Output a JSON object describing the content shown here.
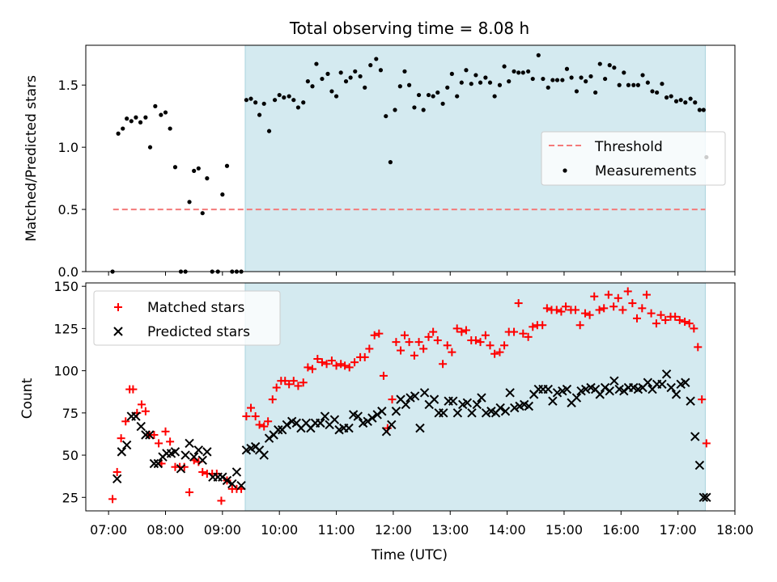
{
  "chart_data": [
    {
      "type": "scatter",
      "title": "Total observing time = 8.08 h",
      "ylabel": "Matched/Predicted stars",
      "xlabel": "",
      "xlim": [
        6.6,
        18.0
      ],
      "ylim": [
        0,
        1.82
      ],
      "yticks": [
        0.0,
        0.5,
        1.0,
        1.5
      ],
      "ytick_labels": [
        "0.0",
        "0.5",
        "1.0",
        "1.5"
      ],
      "xticks": [
        7,
        8,
        9,
        10,
        11,
        12,
        13,
        14,
        15,
        16,
        17,
        18
      ],
      "shaded_region": [
        9.4,
        17.48
      ],
      "shade_color": "#d4eaf0",
      "grid": false,
      "legend": {
        "position": "center-right",
        "entries": [
          "Threshold",
          "Measurements"
        ]
      },
      "threshold": {
        "name": "Threshold",
        "value": 0.5,
        "x_range": [
          7.08,
          17.48
        ],
        "color": "#f47a7a",
        "style": "dashed"
      },
      "series": [
        {
          "name": "Measurements",
          "marker": "dot",
          "color": "#000000",
          "x": [
            7.07,
            7.17,
            7.25,
            7.32,
            7.4,
            7.48,
            7.56,
            7.65,
            7.73,
            7.82,
            7.92,
            8.0,
            8.08,
            8.17,
            8.27,
            8.35,
            8.42,
            8.5,
            8.58,
            8.65,
            8.73,
            8.82,
            8.92,
            9.0,
            9.08,
            9.17,
            9.25,
            9.33,
            9.42,
            9.5,
            9.58,
            9.65,
            9.73,
            9.82,
            9.92,
            10.0,
            10.08,
            10.17,
            10.25,
            10.33,
            10.42,
            10.5,
            10.58,
            10.65,
            10.75,
            10.85,
            10.92,
            11.0,
            11.08,
            11.17,
            11.25,
            11.33,
            11.42,
            11.5,
            11.6,
            11.7,
            11.78,
            11.87,
            11.95,
            12.03,
            12.12,
            12.2,
            12.28,
            12.37,
            12.45,
            12.53,
            12.62,
            12.7,
            12.78,
            12.87,
            12.95,
            13.03,
            13.12,
            13.2,
            13.28,
            13.37,
            13.45,
            13.53,
            13.62,
            13.7,
            13.78,
            13.87,
            13.95,
            14.03,
            14.12,
            14.2,
            14.28,
            14.37,
            14.45,
            14.55,
            14.63,
            14.72,
            14.8,
            14.88,
            14.97,
            15.05,
            15.13,
            15.22,
            15.3,
            15.38,
            15.47,
            15.55,
            15.63,
            15.72,
            15.8,
            15.88,
            15.97,
            16.05,
            16.13,
            16.22,
            16.3,
            16.38,
            16.47,
            16.55,
            16.63,
            16.72,
            16.8,
            16.88,
            16.97,
            17.05,
            17.13,
            17.22,
            17.3,
            17.38,
            17.45,
            17.5
          ],
          "y": [
            0.0,
            1.11,
            1.15,
            1.23,
            1.21,
            1.24,
            1.2,
            1.24,
            1.0,
            1.33,
            1.26,
            1.28,
            1.15,
            0.84,
            0.0,
            0.0,
            0.56,
            0.81,
            0.83,
            0.47,
            0.75,
            0.0,
            0.0,
            0.62,
            0.85,
            0.0,
            0.0,
            0.0,
            1.38,
            1.39,
            1.36,
            1.26,
            1.35,
            1.13,
            1.38,
            1.42,
            1.4,
            1.41,
            1.38,
            1.32,
            1.36,
            1.53,
            1.49,
            1.67,
            1.55,
            1.59,
            1.45,
            1.41,
            1.6,
            1.53,
            1.56,
            1.61,
            1.57,
            1.48,
            1.66,
            1.71,
            1.62,
            1.25,
            0.88,
            1.3,
            1.49,
            1.61,
            1.5,
            1.32,
            1.42,
            1.3,
            1.42,
            1.41,
            1.44,
            1.35,
            1.48,
            1.59,
            1.41,
            1.52,
            1.62,
            1.51,
            1.58,
            1.52,
            1.56,
            1.52,
            1.41,
            1.5,
            1.65,
            1.53,
            1.61,
            1.6,
            1.6,
            1.61,
            1.55,
            1.74,
            1.55,
            1.48,
            1.54,
            1.54,
            1.54,
            1.63,
            1.56,
            1.45,
            1.56,
            1.53,
            1.57,
            1.44,
            1.67,
            1.55,
            1.66,
            1.64,
            1.5,
            1.6,
            1.5,
            1.5,
            1.5,
            1.58,
            1.52,
            1.45,
            1.44,
            1.51,
            1.4,
            1.41,
            1.37,
            1.38,
            1.36,
            1.39,
            1.36,
            1.3,
            1.3,
            0.92
          ]
        }
      ]
    },
    {
      "type": "scatter",
      "title": "",
      "xlabel": "Time (UTC)",
      "ylabel": "Count",
      "xlim": [
        6.6,
        18.0
      ],
      "ylim": [
        17,
        152
      ],
      "yticks": [
        25,
        50,
        75,
        100,
        125,
        150
      ],
      "xticks": [
        7,
        8,
        9,
        10,
        11,
        12,
        13,
        14,
        15,
        16,
        17,
        18
      ],
      "xtick_labels": [
        "07:00",
        "08:00",
        "09:00",
        "10:00",
        "11:00",
        "12:00",
        "13:00",
        "14:00",
        "15:00",
        "16:00",
        "17:00",
        "18:00"
      ],
      "shaded_region": [
        9.4,
        17.48
      ],
      "shade_color": "#d4eaf0",
      "grid": false,
      "legend": {
        "position": "top-left",
        "entries": [
          "Matched stars",
          "Predicted stars"
        ]
      },
      "series": [
        {
          "name": "Matched stars",
          "marker": "plus",
          "color": "#ff0000",
          "x": [
            7.07,
            7.15,
            7.22,
            7.3,
            7.37,
            7.43,
            7.5,
            7.58,
            7.65,
            7.72,
            7.8,
            7.88,
            7.93,
            8.0,
            8.08,
            8.17,
            8.25,
            8.33,
            8.42,
            8.5,
            8.58,
            8.65,
            8.73,
            8.82,
            8.9,
            8.98,
            9.08,
            9.17,
            9.25,
            9.33,
            9.42,
            9.5,
            9.58,
            9.65,
            9.73,
            9.8,
            9.88,
            9.95,
            10.03,
            10.1,
            10.17,
            10.25,
            10.33,
            10.42,
            10.5,
            10.58,
            10.67,
            10.75,
            10.83,
            10.92,
            11.0,
            11.08,
            11.15,
            11.23,
            11.32,
            11.42,
            11.5,
            11.58,
            11.67,
            11.75,
            11.83,
            11.9,
            11.98,
            12.05,
            12.13,
            12.2,
            12.28,
            12.37,
            12.45,
            12.53,
            12.62,
            12.7,
            12.78,
            12.87,
            12.95,
            13.03,
            13.12,
            13.2,
            13.28,
            13.37,
            13.45,
            13.53,
            13.62,
            13.7,
            13.78,
            13.87,
            13.95,
            14.03,
            14.12,
            14.2,
            14.28,
            14.37,
            14.45,
            14.53,
            14.62,
            14.7,
            14.78,
            14.87,
            14.95,
            15.03,
            15.12,
            15.2,
            15.28,
            15.37,
            15.45,
            15.53,
            15.62,
            15.7,
            15.78,
            15.87,
            15.95,
            16.03,
            16.12,
            16.2,
            16.28,
            16.37,
            16.45,
            16.53,
            16.62,
            16.7,
            16.78,
            16.87,
            16.95,
            17.03,
            17.12,
            17.2,
            17.28,
            17.35,
            17.42,
            17.5
          ],
          "y": [
            24,
            40,
            60,
            70,
            89,
            89,
            75,
            80,
            76,
            62,
            62,
            57,
            45,
            64,
            58,
            43,
            43,
            43,
            28,
            47,
            46,
            40,
            39,
            39,
            39,
            23,
            35,
            30,
            30,
            30,
            73,
            78,
            73,
            68,
            67,
            70,
            83,
            90,
            94,
            94,
            92,
            94,
            91,
            93,
            102,
            101,
            107,
            105,
            104,
            106,
            103,
            104,
            103,
            102,
            105,
            108,
            108,
            113,
            121,
            122,
            97,
            66,
            83,
            117,
            112,
            121,
            117,
            109,
            117,
            113,
            120,
            123,
            118,
            104,
            115,
            111,
            125,
            123,
            124,
            118,
            118,
            117,
            121,
            115,
            110,
            111,
            115,
            123,
            123,
            140,
            122,
            120,
            126,
            127,
            127,
            137,
            136,
            136,
            135,
            138,
            136,
            136,
            127,
            134,
            133,
            144,
            136,
            137,
            145,
            138,
            143,
            136,
            147,
            140,
            131,
            137,
            145,
            134,
            128,
            133,
            130,
            132,
            132,
            130,
            129,
            128,
            125,
            114,
            83,
            57
          ]
        },
        {
          "name": "Predicted stars",
          "marker": "x",
          "color": "#000000",
          "x": [
            7.15,
            7.23,
            7.32,
            7.4,
            7.48,
            7.57,
            7.65,
            7.72,
            7.8,
            7.87,
            7.95,
            8.02,
            8.1,
            8.17,
            8.27,
            8.35,
            8.42,
            8.5,
            8.58,
            8.65,
            8.73,
            8.83,
            8.92,
            9.0,
            9.08,
            9.17,
            9.25,
            9.33,
            9.42,
            9.5,
            9.58,
            9.65,
            9.73,
            9.82,
            9.9,
            9.98,
            10.05,
            10.13,
            10.22,
            10.3,
            10.38,
            10.47,
            10.55,
            10.63,
            10.72,
            10.8,
            10.88,
            10.97,
            11.05,
            11.13,
            11.22,
            11.3,
            11.38,
            11.47,
            11.55,
            11.63,
            11.72,
            11.8,
            11.88,
            11.97,
            12.05,
            12.13,
            12.22,
            12.3,
            12.38,
            12.47,
            12.55,
            12.63,
            12.72,
            12.8,
            12.88,
            12.97,
            13.05,
            13.13,
            13.22,
            13.3,
            13.38,
            13.47,
            13.55,
            13.63,
            13.72,
            13.8,
            13.88,
            13.97,
            14.05,
            14.13,
            14.22,
            14.3,
            14.38,
            14.47,
            14.55,
            14.63,
            14.72,
            14.8,
            14.88,
            14.97,
            15.05,
            15.13,
            15.22,
            15.3,
            15.38,
            15.47,
            15.55,
            15.63,
            15.72,
            15.8,
            15.88,
            15.97,
            16.05,
            16.13,
            16.22,
            16.3,
            16.38,
            16.47,
            16.55,
            16.63,
            16.72,
            16.8,
            16.88,
            16.97,
            17.05,
            17.13,
            17.22,
            17.3,
            17.38,
            17.45,
            17.5
          ],
          "y": [
            36,
            52,
            56,
            73,
            73,
            67,
            62,
            62,
            45,
            45,
            49,
            51,
            51,
            52,
            42,
            50,
            57,
            49,
            53,
            47,
            52,
            37,
            37,
            37,
            35,
            33,
            40,
            32,
            53,
            54,
            55,
            53,
            50,
            60,
            62,
            65,
            65,
            68,
            70,
            69,
            66,
            69,
            66,
            69,
            69,
            73,
            68,
            71,
            65,
            66,
            66,
            74,
            73,
            69,
            70,
            72,
            74,
            76,
            64,
            68,
            76,
            83,
            80,
            84,
            85,
            66,
            87,
            80,
            83,
            75,
            75,
            82,
            82,
            75,
            80,
            81,
            75,
            80,
            84,
            75,
            76,
            75,
            78,
            76,
            87,
            78,
            79,
            80,
            79,
            86,
            89,
            89,
            89,
            82,
            87,
            88,
            89,
            81,
            84,
            88,
            89,
            90,
            89,
            86,
            90,
            88,
            94,
            89,
            88,
            90,
            90,
            89,
            90,
            93,
            89,
            92,
            92,
            98,
            90,
            86,
            92,
            93,
            82,
            61,
            44,
            25,
            25
          ]
        }
      ]
    }
  ]
}
